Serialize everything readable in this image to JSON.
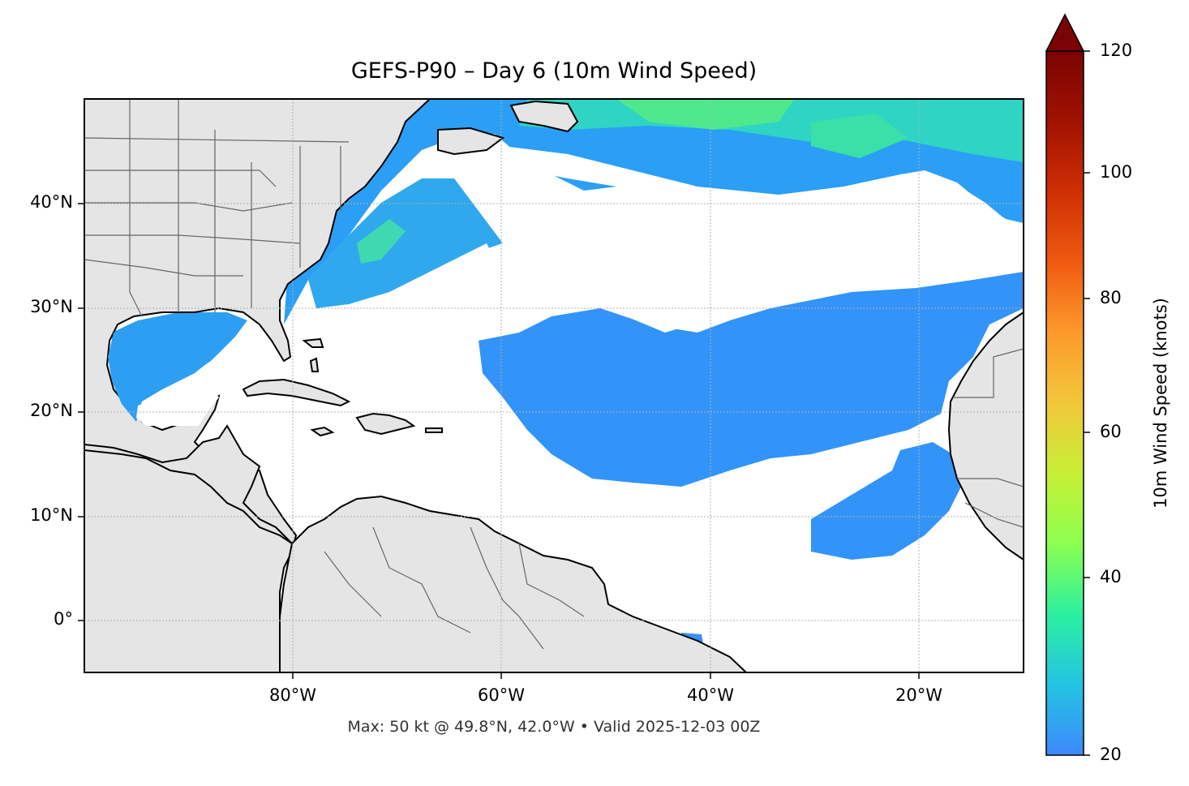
{
  "map": {
    "title": "GEFS-P90 – Day 6 (10m Wind Speed)",
    "footer": "Max: 50 kt @ 49.8°N, 42.0°W • Valid 2025-12-03 00Z",
    "extent": {
      "lon_min": -100,
      "lon_max": -10,
      "lat_min": -5,
      "lat_max": 50
    },
    "lat_ticks": [
      {
        "value": 40,
        "label": "40°N"
      },
      {
        "value": 30,
        "label": "30°N"
      },
      {
        "value": 20,
        "label": "20°N"
      },
      {
        "value": 10,
        "label": "10°N"
      },
      {
        "value": 0,
        "label": "0°"
      }
    ],
    "lon_ticks": [
      {
        "value": -80,
        "label": "80°W"
      },
      {
        "value": -60,
        "label": "60°W"
      },
      {
        "value": -40,
        "label": "40°W"
      },
      {
        "value": -20,
        "label": "20°W"
      }
    ],
    "land_color": "#e5e5e5",
    "ocean_color": "#ffffff",
    "coast_color": "#000000",
    "border_color": "#666666"
  },
  "colorbar": {
    "label": "10m Wind Speed (knots)",
    "min": 20,
    "max": 120,
    "extend": "max",
    "ticks": [
      {
        "value": 120,
        "label": "120"
      },
      {
        "value": 100,
        "label": "100"
      },
      {
        "value": 80,
        "label": "80"
      },
      {
        "value": 60,
        "label": "60"
      },
      {
        "value": 40,
        "label": "40"
      },
      {
        "value": 20,
        "label": "20"
      }
    ],
    "colormap": "turbo",
    "over_color": "#7a0403"
  }
}
